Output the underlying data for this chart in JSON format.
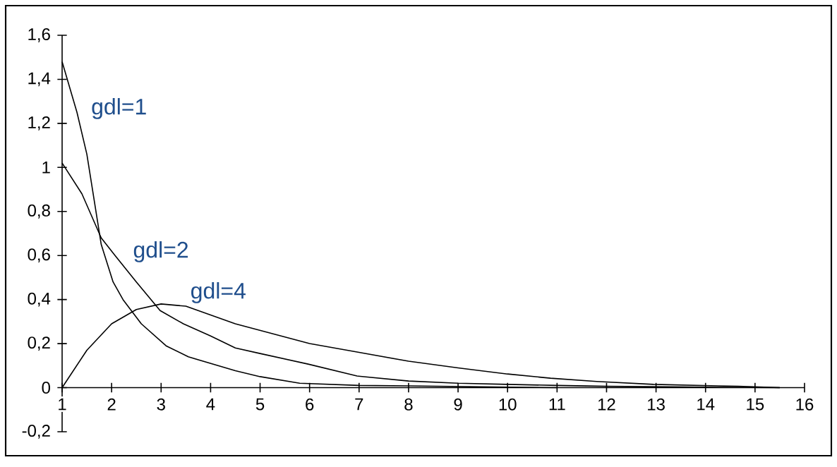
{
  "chart_data": {
    "type": "line",
    "xlim": [
      1,
      16
    ],
    "ylim": [
      -0.2,
      1.6
    ],
    "xticks": [
      1,
      2,
      3,
      4,
      5,
      6,
      7,
      8,
      9,
      10,
      11,
      12,
      13,
      14,
      15,
      16
    ],
    "yticks": [
      {
        "value": -0.2,
        "label": "-0,2"
      },
      0,
      {
        "value": 0.2,
        "label": "0,2"
      },
      {
        "value": 0.4,
        "label": "0,4"
      },
      {
        "value": 0.6,
        "label": "0,6"
      },
      {
        "value": 0.8,
        "label": "0,8"
      },
      1,
      {
        "value": 1.2,
        "label": "1,2"
      },
      {
        "value": 1.4,
        "label": "1,4"
      },
      {
        "value": 1.6,
        "label": "1,6"
      }
    ],
    "grid": false,
    "marker": "none",
    "line_style": "solid",
    "series": [
      {
        "name": "gdl=1",
        "color": "#000000",
        "x": [
          1,
          1.3,
          1.5,
          1.79,
          2.03,
          2.23,
          2.6,
          3.1,
          3.55,
          4.5,
          5,
          5.8,
          7,
          8,
          9,
          10,
          11
        ],
        "values": [
          1.48,
          1.25,
          1.06,
          0.65,
          0.48,
          0.4,
          0.29,
          0.19,
          0.14,
          0.077,
          0.05,
          0.02,
          0.01,
          0.008,
          0.005,
          0.002,
          0
        ]
      },
      {
        "name": "gdl=2",
        "color": "#000000",
        "x": [
          1,
          1.4,
          1.79,
          2.07,
          2.5,
          2.98,
          3.45,
          4,
          4.5,
          5,
          5.97,
          6.96,
          8,
          9,
          10,
          11,
          12,
          13,
          14,
          15.5
        ],
        "values": [
          1.02,
          0.88,
          0.68,
          0.6,
          0.48,
          0.35,
          0.29,
          0.235,
          0.18,
          0.155,
          0.107,
          0.053,
          0.03,
          0.02,
          0.015,
          0.01,
          0.006,
          0.004,
          0.002,
          0
        ]
      },
      {
        "name": "gdl=4",
        "color": "#000000",
        "x": [
          1,
          1.5,
          2,
          2.5,
          3,
          3.5,
          4,
          4.5,
          5,
          6,
          7,
          8,
          9,
          10,
          10.87,
          11.8,
          12.95,
          14.66,
          15.5
        ],
        "values": [
          0,
          0.17,
          0.29,
          0.355,
          0.38,
          0.37,
          0.33,
          0.29,
          0.26,
          0.2,
          0.16,
          0.12,
          0.09,
          0.062,
          0.043,
          0.028,
          0.015,
          0.006,
          0
        ]
      }
    ]
  }
}
